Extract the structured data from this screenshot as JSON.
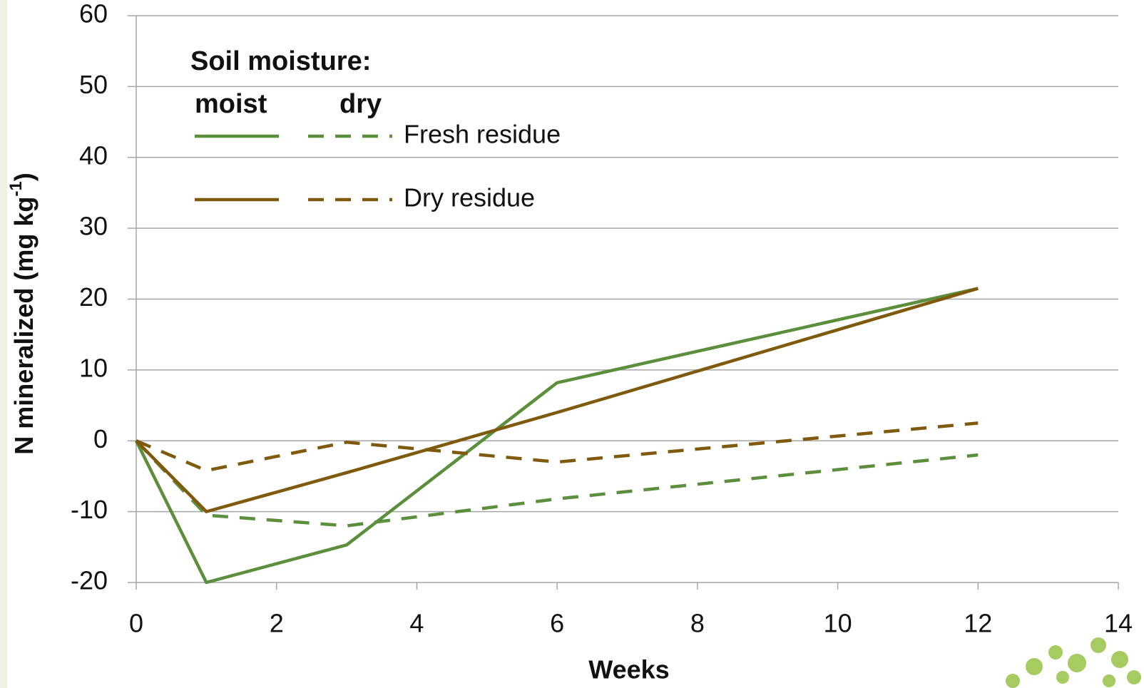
{
  "chart_data": {
    "type": "line",
    "x_label": "Weeks",
    "y_label": "N mineralized (mg kg",
    "y_label_sup": "-1",
    "y_label_end": ")",
    "legend_title": "Soil moisture:",
    "moisture_levels": [
      "moist",
      "dry"
    ],
    "x": [
      0,
      1,
      3,
      6,
      12
    ],
    "series": [
      {
        "name": "Fresh residue",
        "color": "#5b8f3c",
        "values": [
          [
            0,
            -20,
            -14.7,
            8.2,
            21.5
          ],
          [
            0,
            -10.5,
            -12,
            -8.2,
            -2
          ]
        ]
      },
      {
        "name": "Dry residue",
        "color": "#7f5a0c",
        "values": [
          [
            0,
            -10,
            -4.5,
            4,
            21.5
          ],
          [
            0,
            -4.2,
            -0.2,
            -3,
            2.5
          ]
        ]
      }
    ],
    "xlim": [
      0,
      14
    ],
    "xticks": [
      0,
      2,
      4,
      6,
      8,
      10,
      12,
      14
    ],
    "ylim": [
      -20,
      60
    ],
    "yticks": [
      -20,
      -10,
      0,
      10,
      20,
      30,
      40,
      50,
      60
    ],
    "grid": true
  }
}
